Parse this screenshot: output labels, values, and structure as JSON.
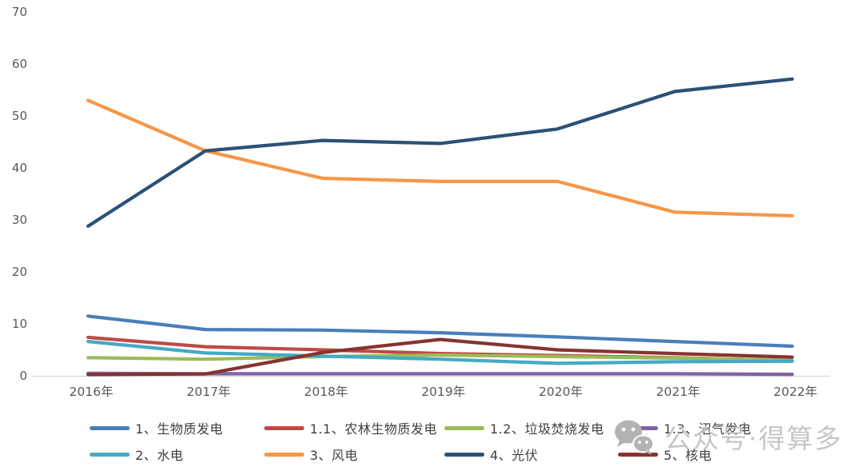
{
  "chart_data": {
    "type": "line",
    "categories": [
      "2016年",
      "2017年",
      "2018年",
      "2019年",
      "2020年",
      "2021年",
      "2022年"
    ],
    "series": [
      {
        "name": "1、生物质发电",
        "color": "#4a7ebb",
        "values": [
          11.5,
          8.9,
          8.8,
          8.3,
          7.5,
          6.6,
          5.7
        ]
      },
      {
        "name": "1.1、农林生物质发电",
        "color": "#bd4b45",
        "values": [
          7.4,
          5.6,
          5.0,
          4.3,
          3.9,
          3.5,
          2.9
        ]
      },
      {
        "name": "1.2、垃圾焚烧发电",
        "color": "#9bbb59",
        "values": [
          3.5,
          3.2,
          3.7,
          4.0,
          3.7,
          3.4,
          3.0
        ]
      },
      {
        "name": "1.3、沼气发电",
        "color": "#8064a2",
        "values": [
          0.5,
          0.4,
          0.4,
          0.4,
          0.4,
          0.4,
          0.3
        ]
      },
      {
        "name": "2、水电",
        "color": "#45a9c5",
        "values": [
          6.6,
          4.4,
          3.8,
          3.2,
          2.4,
          2.7,
          2.8
        ]
      },
      {
        "name": "3、风电",
        "color": "#f79646",
        "values": [
          53.0,
          43.3,
          38.0,
          37.4,
          37.4,
          31.5,
          30.8
        ]
      },
      {
        "name": "4、光伏",
        "color": "#2b5177",
        "values": [
          28.8,
          43.3,
          45.3,
          44.7,
          47.5,
          54.7,
          57.1
        ]
      },
      {
        "name": "5、核电",
        "color": "#853431",
        "values": [
          0.25,
          0.35,
          4.5,
          7.0,
          5.0,
          4.3,
          3.6
        ]
      }
    ],
    "y_ticks": [
      0,
      10,
      20,
      30,
      40,
      50,
      60,
      70
    ],
    "ylim": [
      0,
      70
    ],
    "grid": false,
    "legend_position": "bottom",
    "axis_color": "#d9d9d9",
    "tick_label_color": "#595959"
  },
  "watermark": {
    "text": "公众号·得算多",
    "icon": "wechat-chat-bubbles-icon",
    "text_color": "#c6c6c6",
    "icon_color": "#b3b3b3"
  }
}
